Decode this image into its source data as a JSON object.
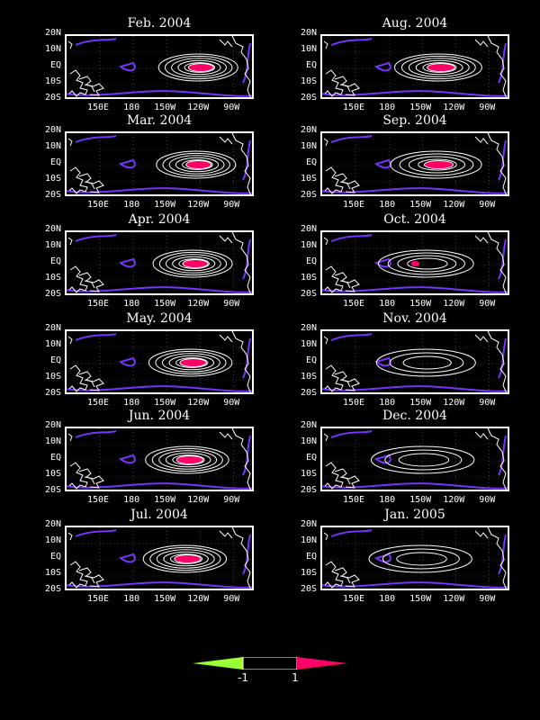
{
  "panels": [
    {
      "title": "Feb. 2004",
      "peak": 2.5,
      "center_lon": 240,
      "spread": 1.0
    },
    {
      "title": "Mar. 2004",
      "peak": 2.5,
      "center_lon": 238,
      "spread": 1.0
    },
    {
      "title": "Apr. 2004",
      "peak": 2.3,
      "center_lon": 235,
      "spread": 1.0
    },
    {
      "title": "May. 2004",
      "peak": 2.4,
      "center_lon": 233,
      "spread": 1.05
    },
    {
      "title": "Jun. 2004",
      "peak": 2.5,
      "center_lon": 230,
      "spread": 1.05
    },
    {
      "title": "Jul. 2004",
      "peak": 2.5,
      "center_lon": 228,
      "spread": 1.05
    },
    {
      "title": "Aug. 2004",
      "peak": 2.4,
      "center_lon": 226,
      "spread": 1.1
    },
    {
      "title": "Sep. 2004",
      "peak": 2.2,
      "center_lon": 224,
      "spread": 1.15
    },
    {
      "title": "Oct. 2004",
      "peak": 2.05,
      "center_lon": 215,
      "spread": 1.2
    },
    {
      "title": "Nov. 2004",
      "peak": 1.7,
      "center_lon": 215,
      "spread": 1.25
    },
    {
      "title": "Dec. 2004",
      "peak": 1.6,
      "center_lon": 212,
      "spread": 1.3
    },
    {
      "title": "Jan. 2005",
      "peak": 1.5,
      "center_lon": 210,
      "spread": 1.3
    }
  ],
  "axes": {
    "y_ticks": [
      "20N",
      "10N",
      "EQ",
      "10S",
      "20S"
    ],
    "x_ticks": [
      "150E",
      "180",
      "150W",
      "120W",
      "90W"
    ],
    "x_tick_lons": [
      150,
      180,
      210,
      240,
      270
    ],
    "lon_range": [
      120,
      290
    ],
    "lat_range": [
      -20,
      20
    ]
  },
  "colorbar": {
    "labels": [
      "-1",
      "1"
    ],
    "neg_color": "#99ff33",
    "pos_color": "#ff0066",
    "mid_color": "#000000"
  },
  "colors": {
    "positive_contour": "#ffffff",
    "negative_contour": "#7733ff",
    "shade_high": "#ff0066",
    "land": "#ffffff",
    "grid": "#666666"
  }
}
